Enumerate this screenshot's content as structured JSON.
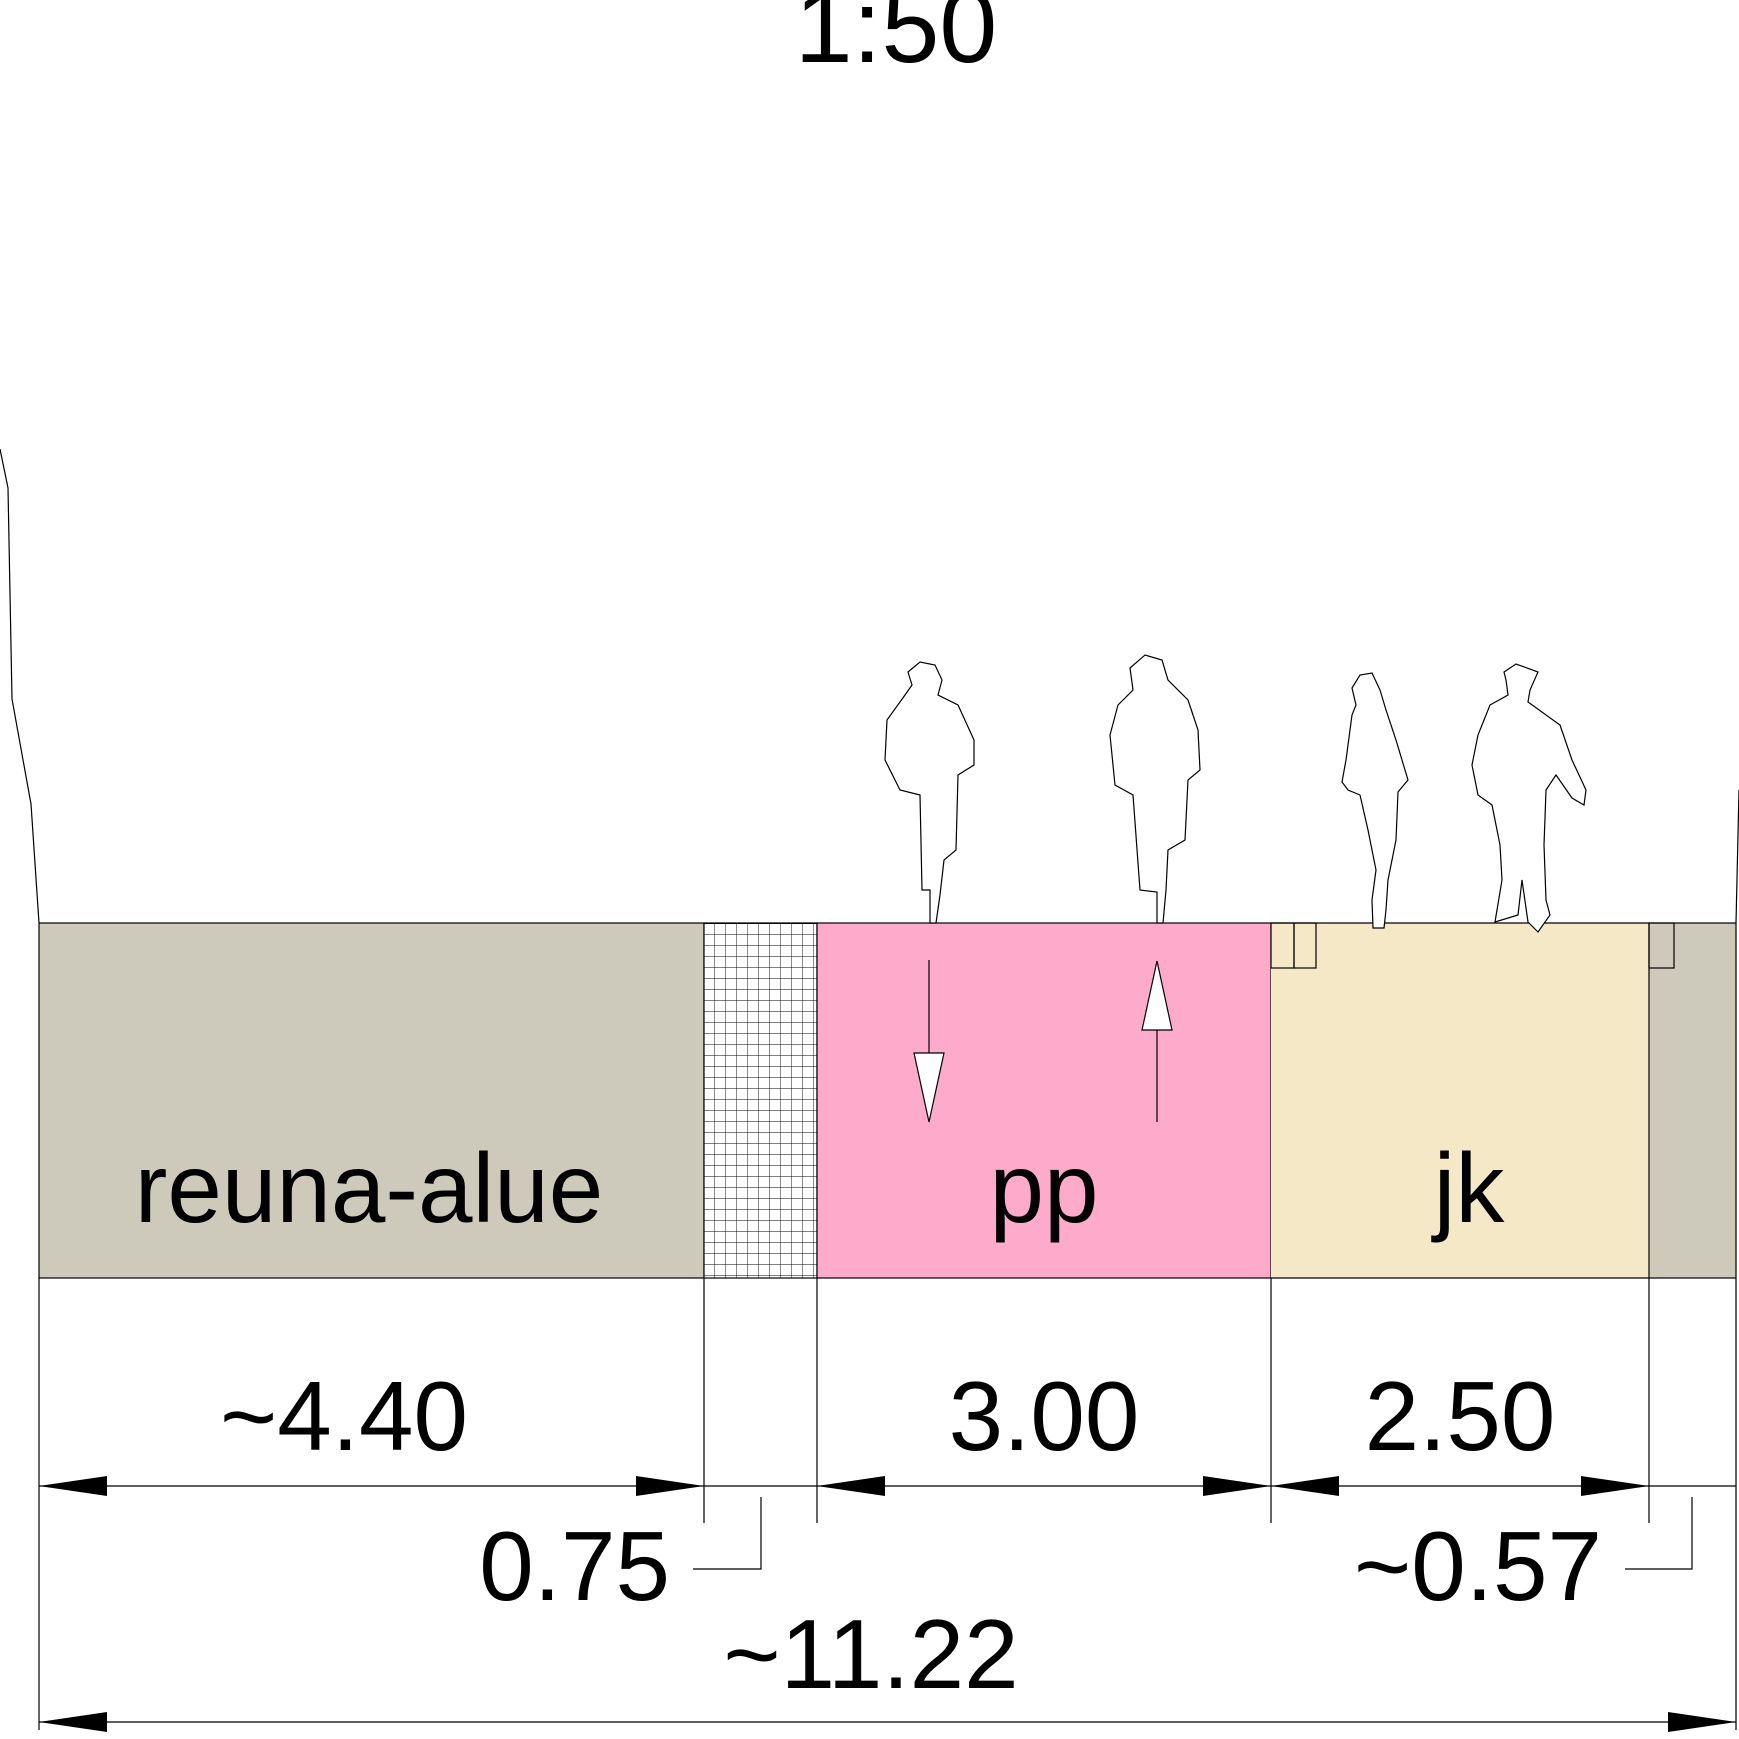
{
  "title": "1:50",
  "zones": [
    {
      "label": "reuna-alue"
    },
    {
      "label": "pp"
    },
    {
      "label": "jk"
    }
  ],
  "dimensions": [
    {
      "label": "~4.40"
    },
    {
      "label": "0.75"
    },
    {
      "label": "3.00"
    },
    {
      "label": "2.50"
    },
    {
      "label": "~0.57"
    },
    {
      "label": "~11.22"
    }
  ]
}
